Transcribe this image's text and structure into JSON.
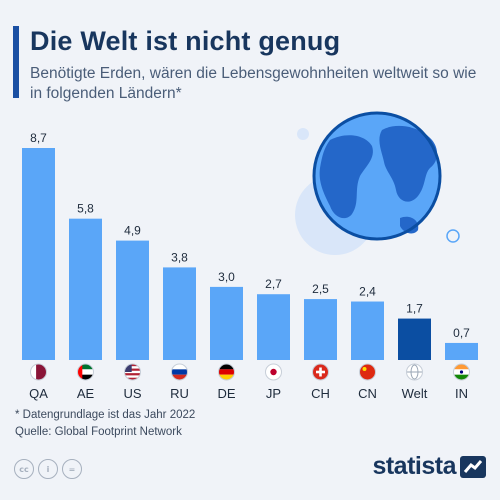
{
  "header": {
    "title": "Die Welt ist nicht genug",
    "subtitle": "Benötigte Erden, wären die Lebensgewohnheiten weltweit so wie in folgenden Ländern*"
  },
  "chart_data": {
    "type": "bar",
    "title": "Die Welt ist nicht genug",
    "subtitle": "Benötigte Erden, wären die Lebensgewohnheiten weltweit so wie in folgenden Ländern*",
    "categories": [
      "QA",
      "AE",
      "US",
      "RU",
      "DE",
      "JP",
      "CH",
      "CN",
      "Welt",
      "IN"
    ],
    "values": [
      8.7,
      5.8,
      4.9,
      3.8,
      3.0,
      2.7,
      2.5,
      2.4,
      1.7,
      0.7
    ],
    "value_labels": [
      "8,7",
      "5,8",
      "4,9",
      "3,8",
      "3,0",
      "2,7",
      "2,5",
      "2,4",
      "1,7",
      "0,7"
    ],
    "highlight_category": "Welt",
    "xlabel": "",
    "ylabel": "",
    "ylim": [
      0,
      8.7
    ],
    "grid": false,
    "legend": "none",
    "colors": {
      "bar": "#5aa6f8",
      "highlight": "#0b4ea2",
      "label": "#1e2b3c"
    }
  },
  "flags": [
    "qatar-flag-icon",
    "uae-flag-icon",
    "usa-flag-icon",
    "russia-flag-icon",
    "germany-flag-icon",
    "japan-flag-icon",
    "switzerland-flag-icon",
    "china-flag-icon",
    "globe-icon",
    "india-flag-icon"
  ],
  "footer": {
    "note": "* Datengrundlage ist das Jahr 2022",
    "source": "Quelle: Global Footprint Network",
    "brand": "statista"
  }
}
